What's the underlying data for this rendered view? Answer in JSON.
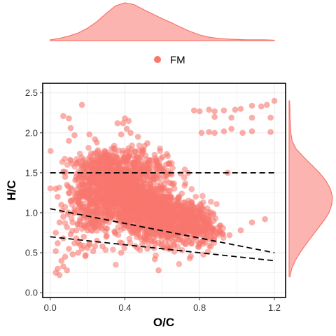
{
  "chart_data": {
    "type": "scatter",
    "title": "",
    "xlabel": "O/C",
    "ylabel": "H/C",
    "xlim": [
      -0.04,
      1.26
    ],
    "ylim": [
      -0.06,
      2.62
    ],
    "x_ticks": [
      "0.0",
      "0.4",
      "0.8",
      "1.2"
    ],
    "y_ticks": [
      "0.0",
      "0.5",
      "1.0",
      "1.5",
      "2.0",
      "2.5"
    ],
    "grid": true,
    "legend": {
      "position": "top",
      "entries": [
        "FM"
      ]
    },
    "series": [
      {
        "name": "FM",
        "color": "#F8766D",
        "points": [
          [
            0.07,
            2.21
          ],
          [
            0.1,
            2.18
          ],
          [
            0.11,
            2.06
          ],
          [
            0.13,
            1.97
          ],
          [
            0.1,
            1.9
          ],
          [
            0.17,
            2.35
          ],
          [
            0.21,
            1.98
          ],
          [
            0.24,
            1.92
          ],
          [
            0.25,
            1.88
          ],
          [
            0.38,
            1.98
          ],
          [
            0.39,
            2.12
          ],
          [
            0.4,
            2.18
          ],
          [
            0.42,
            2.15
          ],
          [
            0.41,
            2.05
          ],
          [
            0.43,
            2.0
          ],
          [
            0.36,
            2.12
          ],
          [
            0.47,
            1.95
          ],
          [
            0.52,
            1.87
          ],
          [
            0.77,
            2.28
          ],
          [
            0.8,
            2.27
          ],
          [
            0.85,
            2.29
          ],
          [
            0.88,
            2.27
          ],
          [
            0.93,
            2.28
          ],
          [
            0.99,
            2.29
          ],
          [
            1.02,
            2.3
          ],
          [
            1.08,
            2.34
          ],
          [
            1.13,
            2.33
          ],
          [
            1.16,
            2.35
          ],
          [
            1.2,
            2.4
          ],
          [
            0.88,
            2.2
          ],
          [
            0.97,
            2.19
          ],
          [
            1.08,
            2.19
          ],
          [
            1.18,
            2.19
          ],
          [
            0.81,
            2.0
          ],
          [
            0.85,
            2.01
          ],
          [
            0.88,
            2.0
          ],
          [
            0.93,
            2.02
          ],
          [
            0.97,
            2.05
          ],
          [
            1.03,
            2.0
          ],
          [
            1.08,
            2.02
          ],
          [
            1.18,
            2.01
          ],
          [
            0.95,
            1.5
          ],
          [
            1.15,
            0.92
          ],
          [
            1.08,
            0.88
          ],
          [
            1.02,
            0.78
          ],
          [
            0.96,
            0.72
          ],
          [
            0.58,
            0.28
          ],
          [
            0.52,
            0.55
          ],
          [
            0.38,
            0.5
          ],
          [
            0.56,
            0.42
          ],
          [
            0.03,
            0.25
          ],
          [
            0.04,
            0.3
          ],
          [
            0.05,
            0.22
          ],
          [
            0.06,
            0.4
          ],
          [
            0.07,
            0.33
          ],
          [
            0.08,
            0.45
          ],
          [
            0.09,
            0.28
          ],
          [
            0.03,
            0.52
          ],
          [
            0.04,
            0.62
          ],
          [
            0.1,
            0.55
          ],
          [
            0.03,
            0.75
          ],
          [
            0.05,
            0.88
          ],
          [
            0.07,
            0.95
          ],
          [
            0.06,
            1.1
          ],
          [
            0.04,
            1.2
          ],
          [
            0.03,
            1.3
          ],
          [
            0.08,
            1.45
          ],
          [
            0.09,
            1.35
          ],
          [
            0.1,
            1.25
          ],
          [
            0.11,
            1.15
          ],
          [
            0.12,
            0.48
          ],
          [
            0.15,
            0.5
          ],
          [
            0.17,
            0.55
          ],
          [
            0.19,
            0.47
          ],
          [
            0.21,
            0.6
          ],
          [
            0.23,
            0.52
          ],
          [
            0.25,
            0.65
          ],
          [
            0.18,
            0.7
          ],
          [
            0.14,
            0.68
          ],
          [
            0.28,
            0.58
          ],
          [
            0.3,
            0.7
          ],
          [
            0.16,
            0.6
          ],
          [
            0.2,
            0.56
          ],
          [
            0.13,
            0.62
          ],
          [
            0.24,
            0.58
          ],
          [
            0.07,
            0.68
          ],
          [
            0.11,
            0.73
          ],
          [
            0.09,
            0.82
          ],
          [
            0.14,
            0.78
          ],
          [
            0.12,
            0.88
          ],
          [
            0.18,
            0.84
          ],
          [
            0.16,
            0.92
          ],
          [
            0.2,
            0.78
          ],
          [
            0.15,
            1.0
          ],
          [
            0.13,
            1.05
          ],
          [
            0.19,
            0.98
          ],
          [
            0.22,
            0.92
          ],
          [
            0.25,
            0.88
          ],
          [
            0.27,
            0.82
          ],
          [
            0.3,
            0.9
          ]
        ],
        "cloud": [
          {
            "center": [
              0.42,
              1.15
            ],
            "spread": [
              0.12,
              0.24
            ],
            "corr": -0.45,
            "count": 950
          },
          {
            "center": [
              0.62,
              0.95
            ],
            "spread": [
              0.12,
              0.18
            ],
            "corr": -0.4,
            "count": 650
          },
          {
            "center": [
              0.3,
              1.45
            ],
            "spread": [
              0.09,
              0.18
            ],
            "corr": -0.2,
            "count": 380
          },
          {
            "center": [
              0.78,
              0.85
            ],
            "spread": [
              0.07,
              0.11
            ],
            "corr": -0.2,
            "count": 160
          },
          {
            "center": [
              0.2,
              1.05
            ],
            "spread": [
              0.06,
              0.2
            ],
            "corr": 0.0,
            "count": 140
          },
          {
            "center": [
              0.48,
              1.62
            ],
            "spread": [
              0.1,
              0.12
            ],
            "corr": -0.3,
            "count": 200
          }
        ]
      }
    ],
    "reference_lines": [
      {
        "x": [
          0.0,
          1.2
        ],
        "y": [
          1.5,
          1.5
        ],
        "style": "dashed"
      },
      {
        "x": [
          0.0,
          1.2
        ],
        "y": [
          1.05,
          0.5
        ],
        "style": "dashed"
      },
      {
        "x": [
          0.0,
          1.2
        ],
        "y": [
          0.7,
          0.4
        ],
        "style": "dashed"
      }
    ],
    "marginal_x": {
      "type": "density",
      "x": [
        0.0,
        0.05,
        0.1,
        0.15,
        0.2,
        0.25,
        0.3,
        0.35,
        0.4,
        0.45,
        0.5,
        0.55,
        0.6,
        0.65,
        0.7,
        0.75,
        0.8,
        0.85,
        0.9,
        0.95,
        1.0,
        1.05,
        1.1,
        1.15,
        1.2
      ],
      "density": [
        0.02,
        0.06,
        0.12,
        0.2,
        0.33,
        0.5,
        0.72,
        0.92,
        1.0,
        0.95,
        0.82,
        0.7,
        0.58,
        0.47,
        0.35,
        0.24,
        0.15,
        0.09,
        0.06,
        0.04,
        0.03,
        0.02,
        0.02,
        0.02,
        0.01
      ]
    },
    "marginal_y": {
      "type": "density",
      "y": [
        0.2,
        0.3,
        0.4,
        0.5,
        0.6,
        0.7,
        0.8,
        0.9,
        1.0,
        1.1,
        1.2,
        1.3,
        1.4,
        1.5,
        1.6,
        1.7,
        1.8,
        1.9,
        2.0,
        2.1,
        2.2,
        2.3,
        2.4
      ],
      "density": [
        0.02,
        0.06,
        0.14,
        0.25,
        0.38,
        0.52,
        0.66,
        0.8,
        0.92,
        0.98,
        1.0,
        0.95,
        0.85,
        0.7,
        0.52,
        0.33,
        0.16,
        0.07,
        0.04,
        0.03,
        0.02,
        0.02,
        0.01
      ]
    }
  }
}
